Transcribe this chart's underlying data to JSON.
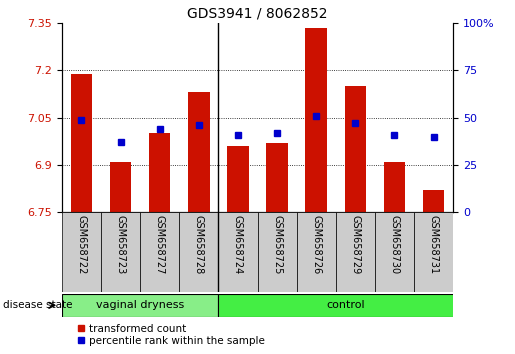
{
  "title": "GDS3941 / 8062852",
  "samples": [
    "GSM658722",
    "GSM658723",
    "GSM658727",
    "GSM658728",
    "GSM658724",
    "GSM658725",
    "GSM658726",
    "GSM658729",
    "GSM658730",
    "GSM658731"
  ],
  "groups": [
    "vaginal dryness",
    "vaginal dryness",
    "vaginal dryness",
    "vaginal dryness",
    "control",
    "control",
    "control",
    "control",
    "control",
    "control"
  ],
  "transformed_count": [
    7.19,
    6.91,
    7.0,
    7.13,
    6.96,
    6.97,
    7.335,
    7.15,
    6.91,
    6.82
  ],
  "percentile_rank": [
    49,
    37,
    44,
    46,
    41,
    42,
    51,
    47,
    41,
    40
  ],
  "ylim": [
    6.75,
    7.35
  ],
  "yticks_left": [
    6.75,
    6.9,
    7.05,
    7.2,
    7.35
  ],
  "yticks_right": [
    0,
    25,
    50,
    75,
    100
  ],
  "bar_color": "#cc1100",
  "dot_color": "#0000cc",
  "group_boundary": 4,
  "bar_width": 0.55,
  "baseline": 6.75,
  "grid_lines": [
    6.9,
    7.05,
    7.2
  ],
  "vd_label": "vaginal dryness",
  "ctrl_label": "control",
  "disease_state_label": "disease state",
  "legend_bar_label": "transformed count",
  "legend_dot_label": "percentile rank within the sample",
  "title_fontsize": 10,
  "tick_fontsize": 8,
  "label_fontsize": 8
}
